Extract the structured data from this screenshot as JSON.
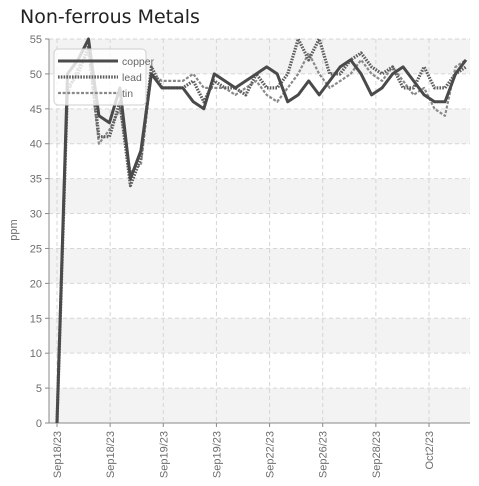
{
  "chart_data": {
    "type": "line",
    "title": "Non-ferrous Metals",
    "xlabel": "",
    "ylabel": "ppm",
    "ylim": [
      0,
      55
    ],
    "yticks": [
      0,
      5,
      10,
      15,
      20,
      25,
      30,
      35,
      40,
      45,
      50,
      55
    ],
    "grid": true,
    "legend_position": "top-left",
    "x_tick_labels": [
      "Sep18/23",
      "Sep18/23",
      "Sep19/23",
      "Sep19/23",
      "Sep22/23",
      "Sep26/23",
      "Sep28/23",
      "Oct2/23"
    ],
    "series": [
      {
        "name": "copper",
        "color": "#4a4a4a",
        "style": "solid",
        "values": [
          0,
          50,
          52,
          55,
          44,
          43,
          48,
          35,
          39,
          50,
          48,
          48,
          48,
          46,
          45,
          50,
          49,
          48,
          49,
          50,
          51,
          50,
          46,
          47,
          49,
          47,
          49,
          51,
          52,
          50,
          47,
          48,
          50,
          51,
          49,
          47,
          46,
          46,
          50,
          52
        ]
      },
      {
        "name": "lead",
        "color": "#5e5e5e",
        "style": "dotted",
        "values": [
          0,
          48,
          50,
          54,
          41,
          41,
          46,
          34,
          38,
          51,
          48,
          48,
          48,
          49,
          46,
          49,
          48,
          48,
          47,
          50,
          48,
          48,
          50,
          55,
          52,
          55,
          50,
          50,
          52,
          53,
          51,
          50,
          51,
          48,
          48,
          51,
          48,
          48,
          50,
          51
        ]
      },
      {
        "name": "tin",
        "color": "#8a8a8a",
        "style": "dashed",
        "values": [
          0,
          47,
          51,
          53,
          40,
          42,
          45,
          36,
          37,
          50,
          49,
          49,
          49,
          50,
          48,
          48,
          48,
          47,
          48,
          49,
          47,
          46,
          48,
          50,
          53,
          50,
          48,
          49,
          50,
          52,
          50,
          49,
          51,
          49,
          47,
          48,
          45,
          44,
          51,
          52
        ]
      }
    ]
  }
}
